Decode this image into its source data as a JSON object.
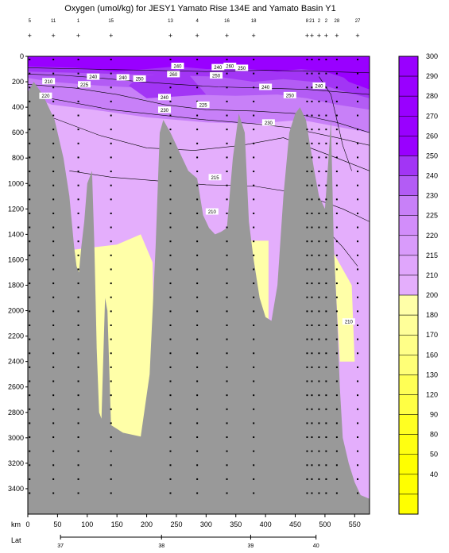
{
  "chart_data": {
    "type": "heatmap",
    "title": "Oxygen (umol/kg) for JESY1 Yamato Rise 134E and Yamato Basin Y1",
    "xlabel": "km",
    "ylabel": "",
    "secondary_xlabel": "Lat",
    "x_ticks": [
      0,
      50,
      100,
      150,
      200,
      250,
      300,
      350,
      400,
      450,
      500,
      550
    ],
    "x_range": [
      0,
      575
    ],
    "y_ticks": [
      0,
      200,
      400,
      600,
      800,
      1000,
      1200,
      1400,
      1600,
      1800,
      2000,
      2200,
      2400,
      2600,
      2800,
      3000,
      3200,
      3400
    ],
    "y_range": [
      0,
      3600
    ],
    "y_reversed": true,
    "lat_ticks": [
      {
        "km": 55,
        "label": "37"
      },
      {
        "km": 225,
        "label": "38"
      },
      {
        "km": 375,
        "label": "39"
      },
      {
        "km": 485,
        "label": "40"
      }
    ],
    "station_km": [
      3,
      43,
      85,
      140,
      240,
      285,
      335,
      380,
      470,
      478,
      490,
      502,
      520,
      555
    ],
    "station_labels": [
      "5",
      "11",
      "1",
      "15",
      "13",
      "4",
      "16",
      "18",
      "8",
      "21",
      "2",
      "2",
      "28",
      "27"
    ],
    "colorbar": [
      {
        "value": "300",
        "color": "#9900ff"
      },
      {
        "value": "290",
        "color": "#9900ff"
      },
      {
        "value": "280",
        "color": "#9900ff"
      },
      {
        "value": "270",
        "color": "#9900ff"
      },
      {
        "value": "260",
        "color": "#9900ff"
      },
      {
        "value": "250",
        "color": "#a235f5"
      },
      {
        "value": "240",
        "color": "#b35cf5"
      },
      {
        "value": "230",
        "color": "#c880f8"
      },
      {
        "value": "225",
        "color": "#d28dfa"
      },
      {
        "value": "220",
        "color": "#d99bfb"
      },
      {
        "value": "215",
        "color": "#e0a6fc"
      },
      {
        "value": "210",
        "color": "#e4aefc"
      },
      {
        "value": "200",
        "color": "#ffffa8"
      },
      {
        "value": "180",
        "color": "#ffff99"
      },
      {
        "value": "170",
        "color": "#ffff88"
      },
      {
        "value": "160",
        "color": "#ffff77"
      },
      {
        "value": "130",
        "color": "#ffff55"
      },
      {
        "value": "120",
        "color": "#ffff44"
      },
      {
        "value": "90",
        "color": "#ffff22"
      },
      {
        "value": "80",
        "color": "#ffff11"
      },
      {
        "value": "50",
        "color": "#ffff00"
      },
      {
        "value": "40",
        "color": "#ffff00"
      }
    ],
    "colorbar_bottom_color": "#ffff00",
    "contour_labels": [
      {
        "text": "240",
        "x": 110,
        "y": 160
      },
      {
        "text": "225",
        "x": 95,
        "y": 220
      },
      {
        "text": "210",
        "x": 35,
        "y": 195
      },
      {
        "text": "220",
        "x": 30,
        "y": 310
      },
      {
        "text": "250",
        "x": 188,
        "y": 175
      },
      {
        "text": "240",
        "x": 252,
        "y": 75
      },
      {
        "text": "260",
        "x": 245,
        "y": 140
      },
      {
        "text": "240",
        "x": 230,
        "y": 320
      },
      {
        "text": "250",
        "x": 317,
        "y": 150
      },
      {
        "text": "230",
        "x": 230,
        "y": 420
      },
      {
        "text": "225",
        "x": 295,
        "y": 380
      },
      {
        "text": "230",
        "x": 405,
        "y": 520
      },
      {
        "text": "250",
        "x": 360,
        "y": 90
      },
      {
        "text": "240",
        "x": 320,
        "y": 85
      },
      {
        "text": "260",
        "x": 340,
        "y": 75
      },
      {
        "text": "240",
        "x": 400,
        "y": 240
      },
      {
        "text": "250",
        "x": 441,
        "y": 305
      },
      {
        "text": "240",
        "x": 490,
        "y": 230
      },
      {
        "text": "215",
        "x": 315,
        "y": 950
      },
      {
        "text": "210",
        "x": 310,
        "y": 1220
      },
      {
        "text": "210",
        "x": 540,
        "y": 2085
      },
      {
        "text": "240",
        "x": 160,
        "y": 165
      }
    ],
    "sea_floor_color": "#999999",
    "oxygen_zones": {
      "deep_yellow_value": "200",
      "upper_purple_value": "210"
    }
  }
}
